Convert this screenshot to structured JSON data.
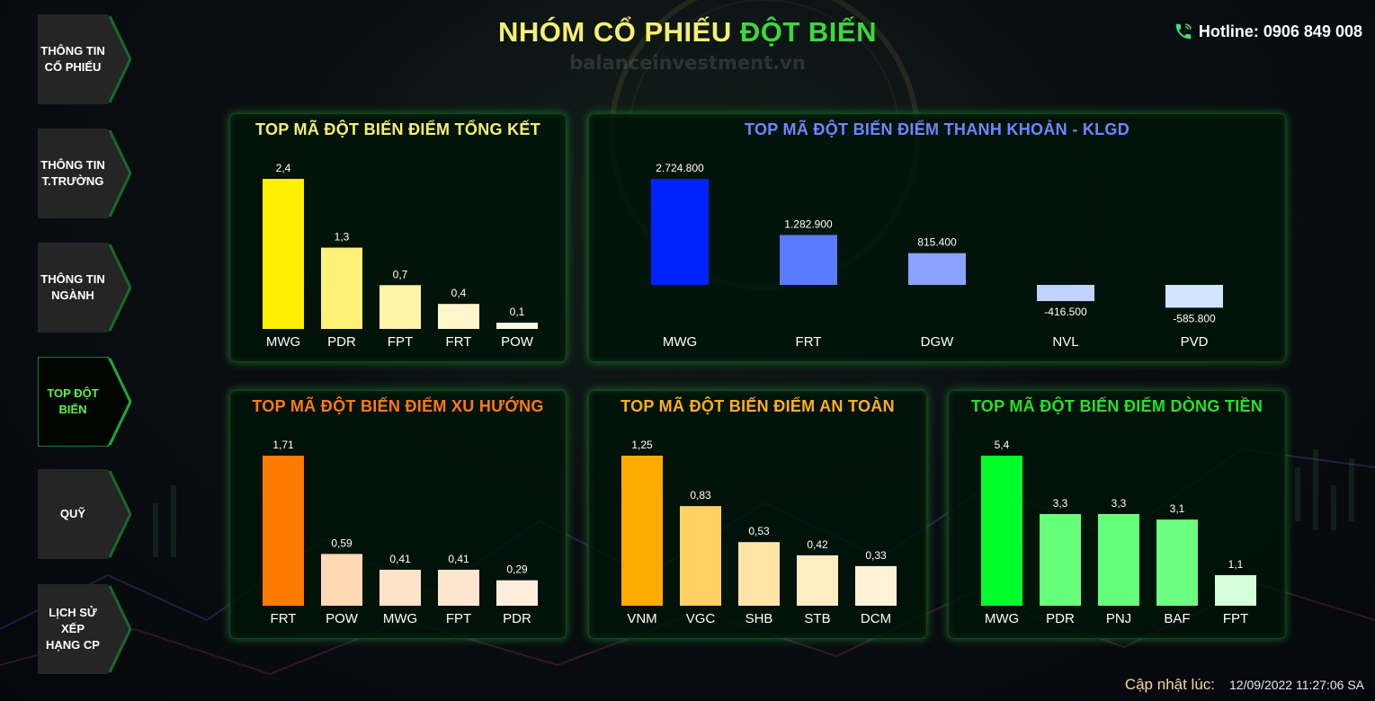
{
  "header": {
    "title_part1": "NHÓM CỔ PHIẾU",
    "title_part2": "ĐỘT BIẾN",
    "title_color1": "#f5f070",
    "title_color2": "#3cd83c",
    "watermark": "balanceinvestment.vn",
    "hotline_label": "Hotline: 0906 849 008",
    "hotline_icon": "phone-icon"
  },
  "sidebar": {
    "items": [
      {
        "label": "THÔNG TIN\nCỔ PHIẾU",
        "active": false
      },
      {
        "label": "THÔNG TIN\nT.TRƯỜNG",
        "active": false
      },
      {
        "label": "THÔNG TIN\nNGÀNH",
        "active": false
      },
      {
        "label": "TOP ĐỘT\nBIẾN",
        "active": true
      },
      {
        "label": "QUỸ",
        "active": false
      },
      {
        "label": "LỊCH SỬ XẾP\nHẠNG CP",
        "active": false
      }
    ]
  },
  "chart_data": [
    {
      "id": "tong-ket",
      "type": "bar",
      "title": "TOP MÃ ĐỘT BIẾN ĐIỂM TỔNG KẾT",
      "title_color": "#f5f070",
      "categories": [
        "MWG",
        "PDR",
        "FPT",
        "FRT",
        "POW"
      ],
      "values": [
        2.4,
        1.3,
        0.7,
        0.4,
        0.1
      ],
      "labels": [
        "2,4",
        "1,3",
        "0,7",
        "0,4",
        "0,1"
      ],
      "colors": [
        "#fff000",
        "#fff076",
        "#fff3a8",
        "#fff5cc",
        "#fff8e0"
      ],
      "ylim": [
        0,
        2.4
      ]
    },
    {
      "id": "thanh-khoan",
      "type": "bar",
      "title": "TOP MÃ ĐỘT BIẾN ĐIỂM THANH KHOẢN - KLGD",
      "title_color": "#6f86ff",
      "categories": [
        "MWG",
        "FRT",
        "DGW",
        "NVL",
        "PVD"
      ],
      "values": [
        2724800,
        1282900,
        815400,
        -416500,
        -585800
      ],
      "labels": [
        "2.724.800",
        "1.282.900",
        "815.400",
        "-416.500",
        "-585.800"
      ],
      "colors": [
        "#0022ff",
        "#5b7bff",
        "#8aa2ff",
        "#c0d2ff",
        "#d2e4ff"
      ],
      "ylim": [
        -585800,
        2724800
      ]
    },
    {
      "id": "xu-huong",
      "type": "bar",
      "title": "TOP MÃ ĐỘT BIẾN ĐIỂM XU HƯỚNG",
      "title_color": "#ff7a10",
      "categories": [
        "FRT",
        "POW",
        "MWG",
        "FPT",
        "PDR"
      ],
      "values": [
        1.71,
        0.59,
        0.41,
        0.41,
        0.29
      ],
      "labels": [
        "1,71",
        "0,59",
        "0,41",
        "0,41",
        "0,29"
      ],
      "colors": [
        "#ff7a00",
        "#ffd8b4",
        "#ffe3c8",
        "#ffe6cf",
        "#ffeedc"
      ],
      "ylim": [
        0,
        1.71
      ]
    },
    {
      "id": "an-toan",
      "type": "bar",
      "title": "TOP MÃ ĐỘT BIẾN ĐIỂM AN TOÀN",
      "title_color": "#ffae20",
      "categories": [
        "VNM",
        "VGC",
        "SHB",
        "STB",
        "DCM"
      ],
      "values": [
        1.25,
        0.83,
        0.53,
        0.42,
        0.33
      ],
      "labels": [
        "1,25",
        "0,83",
        "0,53",
        "0,42",
        "0,33"
      ],
      "colors": [
        "#ffaa00",
        "#ffd063",
        "#ffe4a8",
        "#ffecc0",
        "#fff2d6"
      ],
      "ylim": [
        0,
        1.25
      ]
    },
    {
      "id": "dong-tien",
      "type": "bar",
      "title": "TOP MÃ ĐỘT BIẾN ĐIỂM DÒNG TIỀN",
      "title_color": "#28e028",
      "categories": [
        "MWG",
        "PDR",
        "PNJ",
        "BAF",
        "FPT"
      ],
      "values": [
        5.4,
        3.3,
        3.3,
        3.1,
        1.1
      ],
      "labels": [
        "5,4",
        "3,3",
        "3,3",
        "3,1",
        "1,1"
      ],
      "colors": [
        "#00ff2a",
        "#66ff7a",
        "#66ff7a",
        "#6dff80",
        "#d4ffd8"
      ],
      "ylim": [
        0,
        5.4
      ]
    }
  ],
  "footer": {
    "updated_label": "Cập nhật lúc:",
    "updated_value": "12/09/2022 11:27:06 SA"
  }
}
